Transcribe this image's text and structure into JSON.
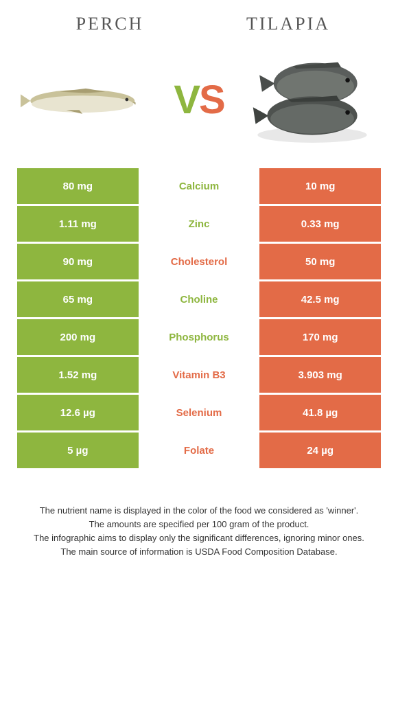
{
  "colors": {
    "left": "#8eb63f",
    "right": "#e36b47",
    "header_text": "#555555",
    "body_text": "#333333",
    "cell_text": "#ffffff",
    "background": "#ffffff"
  },
  "headers": {
    "left": "PERCH",
    "right": "TILAPIA"
  },
  "vs": {
    "v": "V",
    "s": "S"
  },
  "rows": [
    {
      "left": "80 mg",
      "label": "Calcium",
      "right": "10 mg",
      "winner": "left"
    },
    {
      "left": "1.11 mg",
      "label": "Zinc",
      "right": "0.33 mg",
      "winner": "left"
    },
    {
      "left": "90 mg",
      "label": "Cholesterol",
      "right": "50 mg",
      "winner": "right"
    },
    {
      "left": "65 mg",
      "label": "Choline",
      "right": "42.5 mg",
      "winner": "left"
    },
    {
      "left": "200 mg",
      "label": "Phosphorus",
      "right": "170 mg",
      "winner": "left"
    },
    {
      "left": "1.52 mg",
      "label": "Vitamin B3",
      "right": "3.903 mg",
      "winner": "right"
    },
    {
      "left": "12.6 µg",
      "label": "Selenium",
      "right": "41.8 µg",
      "winner": "right"
    },
    {
      "left": "5 µg",
      "label": "Folate",
      "right": "24 µg",
      "winner": "right"
    }
  ],
  "footer": [
    "The nutrient name is displayed in the color of the food we considered as 'winner'.",
    "The amounts are specified per 100 gram of the product.",
    "The infographic aims to display only the significant differences, ignoring minor ones.",
    "The main source of information is USDA Food Composition Database."
  ]
}
